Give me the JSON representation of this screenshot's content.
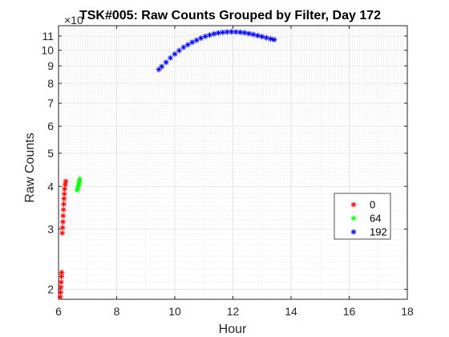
{
  "chart_data": {
    "type": "scatter",
    "title": "TSK#005: Raw Counts Grouped by Filter, Day 172",
    "xlabel": "Hour",
    "ylabel": "Raw  Counts",
    "exponent_label": "×10",
    "xlim": [
      6,
      18
    ],
    "ylim": [
      1.87,
      11.8
    ],
    "y_scale": "log",
    "grid": "on (major and minor)",
    "legend_position": "right",
    "x_ticks": [
      6,
      8,
      10,
      12,
      14,
      16,
      18
    ],
    "x_tick_labels": [
      "6",
      "8",
      "10",
      "12",
      "14",
      "16",
      "18"
    ],
    "y_ticks": [
      2,
      3,
      4,
      5,
      6,
      7,
      8,
      9,
      10,
      11
    ],
    "y_tick_labels": [
      "2",
      "3",
      "4",
      "5",
      "6",
      "7",
      "8",
      "9",
      "10",
      "11"
    ],
    "series": [
      {
        "name": "0",
        "color": "#ff0000",
        "marker": "*",
        "points": [
          [
            6.06,
            1.9
          ],
          [
            6.07,
            1.96
          ],
          [
            6.08,
            2.03
          ],
          [
            6.09,
            2.1
          ],
          [
            6.1,
            2.18
          ],
          [
            6.11,
            2.24
          ],
          [
            6.13,
            2.92
          ],
          [
            6.14,
            3.03
          ],
          [
            6.15,
            3.15
          ],
          [
            6.16,
            3.28
          ],
          [
            6.17,
            3.42
          ],
          [
            6.18,
            3.55
          ],
          [
            6.19,
            3.68
          ],
          [
            6.2,
            3.8
          ],
          [
            6.21,
            3.93
          ],
          [
            6.23,
            4.05
          ],
          [
            6.25,
            4.14
          ]
        ]
      },
      {
        "name": "64",
        "color": "#00ff00",
        "marker": "*",
        "points": [
          [
            6.64,
            3.9
          ],
          [
            6.66,
            3.95
          ],
          [
            6.68,
            4.0
          ],
          [
            6.7,
            4.05
          ],
          [
            6.71,
            4.1
          ],
          [
            6.72,
            4.15
          ],
          [
            6.73,
            4.2
          ]
        ]
      },
      {
        "name": "192",
        "color": "#0000ff",
        "marker": "*",
        "points": [
          [
            9.45,
            8.78
          ],
          [
            9.55,
            8.96
          ],
          [
            9.7,
            9.22
          ],
          [
            9.85,
            9.5
          ],
          [
            10.0,
            9.75
          ],
          [
            10.15,
            9.98
          ],
          [
            10.3,
            10.2
          ],
          [
            10.45,
            10.38
          ],
          [
            10.6,
            10.55
          ],
          [
            10.75,
            10.7
          ],
          [
            10.9,
            10.85
          ],
          [
            11.05,
            10.98
          ],
          [
            11.2,
            11.08
          ],
          [
            11.35,
            11.17
          ],
          [
            11.5,
            11.24
          ],
          [
            11.65,
            11.28
          ],
          [
            11.8,
            11.31
          ],
          [
            11.95,
            11.32
          ],
          [
            12.1,
            11.31
          ],
          [
            12.25,
            11.29
          ],
          [
            12.4,
            11.25
          ],
          [
            12.55,
            11.19
          ],
          [
            12.7,
            11.12
          ],
          [
            12.85,
            11.04
          ],
          [
            13.0,
            10.96
          ],
          [
            13.15,
            10.88
          ],
          [
            13.3,
            10.8
          ],
          [
            13.42,
            10.74
          ]
        ]
      }
    ]
  }
}
